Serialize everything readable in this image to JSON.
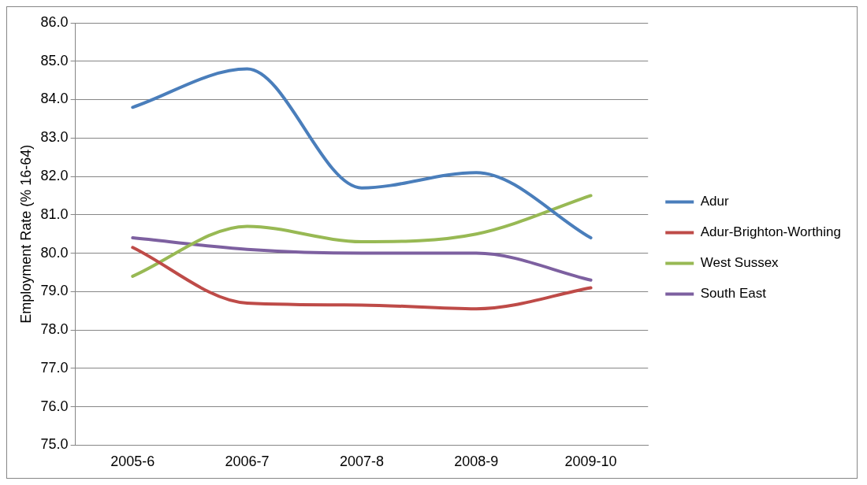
{
  "chart_data": {
    "type": "line",
    "ylabel": "Employment Rate (% 16-64)",
    "categories": [
      "2005-6",
      "2006-7",
      "2007-8",
      "2008-9",
      "2009-10"
    ],
    "series": [
      {
        "name": "Adur",
        "color": "#4a7ebb",
        "values": [
          83.8,
          84.8,
          81.7,
          82.1,
          80.4
        ]
      },
      {
        "name": "Adur-Brighton-Worthing",
        "color": "#be4b48",
        "values": [
          80.15,
          78.7,
          78.65,
          78.55,
          79.1
        ]
      },
      {
        "name": "West Sussex",
        "color": "#98b954",
        "values": [
          79.4,
          80.7,
          80.3,
          80.5,
          81.5
        ]
      },
      {
        "name": "South East",
        "color": "#7d60a0",
        "values": [
          80.4,
          80.1,
          80.0,
          80.0,
          79.3
        ]
      }
    ],
    "ylim": [
      75,
      86
    ],
    "yticks": [
      {
        "value": 75,
        "label": "75.0"
      },
      {
        "value": 76,
        "label": "76.0"
      },
      {
        "value": 77,
        "label": "77.0"
      },
      {
        "value": 78,
        "label": "78.0"
      },
      {
        "value": 79,
        "label": "79.0"
      },
      {
        "value": 80,
        "label": "80.0"
      },
      {
        "value": 81,
        "label": "81.0"
      },
      {
        "value": 82,
        "label": "82.0"
      },
      {
        "value": 83,
        "label": "83.0"
      },
      {
        "value": 84,
        "label": "84.0"
      },
      {
        "value": 85,
        "label": "85.0"
      },
      {
        "value": 86,
        "label": "86.0"
      }
    ],
    "grid": "y",
    "legend": "right",
    "marker": "none",
    "line_style": "solid"
  }
}
